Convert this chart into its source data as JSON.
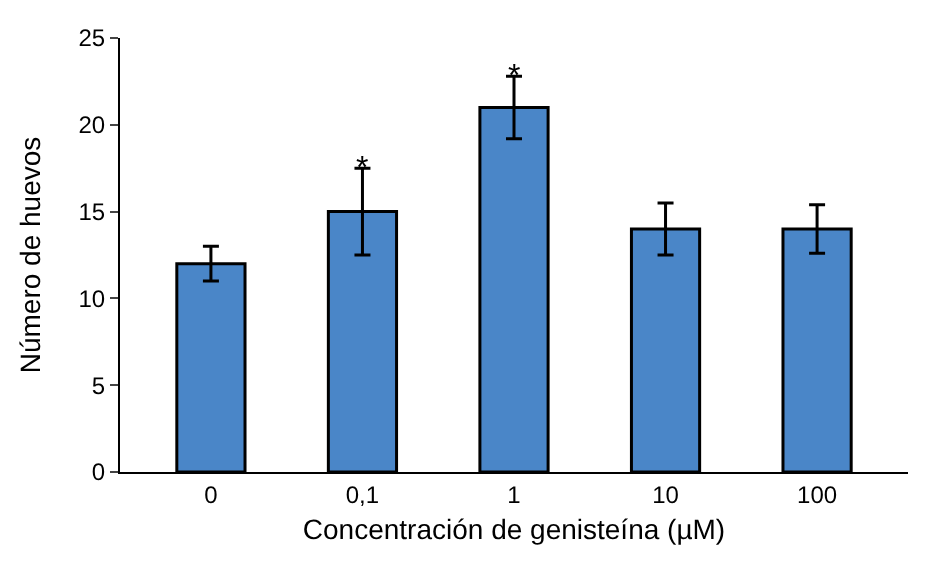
{
  "chart_data": {
    "type": "bar",
    "xlabel": "Concentración de genisteína (µM)",
    "ylabel": "Número de huevos",
    "categories": [
      "0",
      "0,1",
      "1",
      "10",
      "100"
    ],
    "values": [
      12,
      15,
      21,
      14,
      14
    ],
    "errors": [
      1,
      2.5,
      1.8,
      1.5,
      1.4
    ],
    "color": "#4a86c8",
    "ylim": [
      0,
      25
    ],
    "yticks": [
      0,
      5,
      10,
      15,
      20,
      25
    ],
    "grid": false,
    "legend": false,
    "annotations": [
      {
        "text": "*",
        "x": "0,1",
        "y": 17.5
      },
      {
        "text": "*",
        "x": "1",
        "y": 22.8
      }
    ]
  }
}
